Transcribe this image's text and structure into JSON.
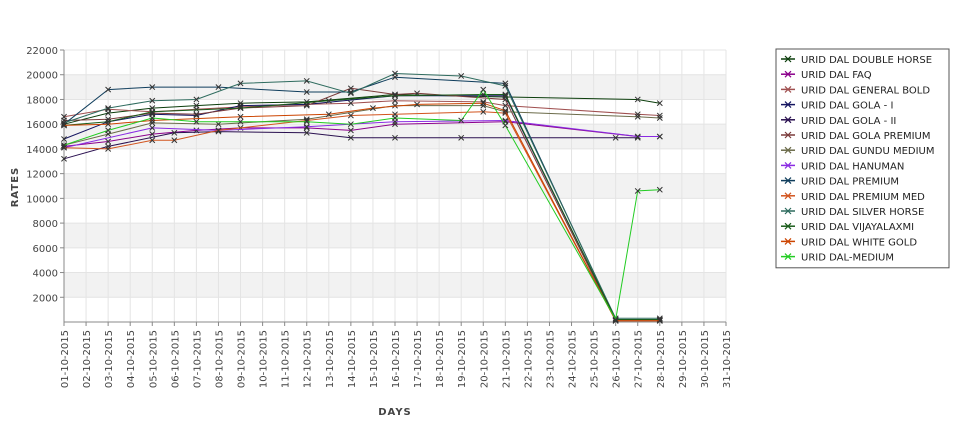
{
  "chart_data": {
    "type": "line",
    "title": "",
    "xlabel": "DAYS",
    "ylabel": "RATES",
    "ylim": [
      0,
      22000
    ],
    "yticks": [
      2000,
      4000,
      6000,
      8000,
      10000,
      12000,
      14000,
      16000,
      18000,
      20000,
      22000
    ],
    "grid": true,
    "alternating_bands": true,
    "legend_position": "right",
    "x_tick_labels": [
      "01-10-2015",
      "02-10-2015",
      "03-10-2015",
      "04-10-2015",
      "05-10-2015",
      "06-10-2015",
      "07-10-2015",
      "08-10-2015",
      "09-10-2015",
      "10-10-2015",
      "11-10-2015",
      "12-10-2015",
      "13-10-2015",
      "14-10-2015",
      "15-10-2015",
      "16-10-2015",
      "17-10-2015",
      "18-10-2015",
      "19-10-2015",
      "20-10-2015",
      "21-10-2015",
      "22-10-2015",
      "23-10-2015",
      "24-10-2015",
      "25-10-2015",
      "26-10-2015",
      "27-10-2015",
      "28-10-2015",
      "29-10-2015",
      "30-10-2015",
      "31-10-2015"
    ],
    "series": [
      {
        "name": "URID DAL DOUBLE HORSE",
        "color": "#0b3d0b",
        "marker": "x",
        "points": [
          [
            "01-10-2015",
            16000
          ],
          [
            "03-10-2015",
            16900
          ],
          [
            "05-10-2015",
            17300
          ],
          [
            "07-10-2015",
            17500
          ],
          [
            "09-10-2015",
            17700
          ],
          [
            "12-10-2015",
            17800
          ],
          [
            "16-10-2015",
            18400
          ],
          [
            "21-10-2015",
            18200
          ],
          [
            "27-10-2015",
            18000
          ],
          [
            "28-10-2015",
            17700
          ]
        ]
      },
      {
        "name": "URID DAL FAQ",
        "color": "#8b008b",
        "marker": "x",
        "points": [
          [
            "01-10-2015",
            14200
          ],
          [
            "03-10-2015",
            14600
          ],
          [
            "05-10-2015",
            15200
          ],
          [
            "07-10-2015",
            15500
          ],
          [
            "09-10-2015",
            15700
          ],
          [
            "12-10-2015",
            15700
          ],
          [
            "14-10-2015",
            15500
          ],
          [
            "16-10-2015",
            16000
          ],
          [
            "21-10-2015",
            16200
          ],
          [
            "27-10-2015",
            15000
          ],
          [
            "28-10-2015",
            15000
          ]
        ]
      },
      {
        "name": "URID DAL GENERAL BOLD",
        "color": "#a05050",
        "marker": "x",
        "points": [
          [
            "01-10-2015",
            16600
          ],
          [
            "03-10-2015",
            17200
          ],
          [
            "05-10-2015",
            17000
          ],
          [
            "07-10-2015",
            17200
          ],
          [
            "09-10-2015",
            17400
          ],
          [
            "12-10-2015",
            17600
          ],
          [
            "14-10-2015",
            17700
          ],
          [
            "16-10-2015",
            17900
          ],
          [
            "20-10-2015",
            17800
          ],
          [
            "21-10-2015",
            17500
          ],
          [
            "27-10-2015",
            16800
          ],
          [
            "28-10-2015",
            16700
          ]
        ]
      },
      {
        "name": "URID DAL GOLA - I",
        "color": "#151560",
        "marker": "x",
        "points": [
          [
            "01-10-2015",
            14800
          ],
          [
            "03-10-2015",
            16200
          ],
          [
            "05-10-2015",
            16800
          ],
          [
            "07-10-2015",
            16700
          ],
          [
            "09-10-2015",
            17500
          ],
          [
            "12-10-2015",
            17600
          ],
          [
            "16-10-2015",
            18300
          ],
          [
            "21-10-2015",
            18300
          ],
          [
            "26-10-2015",
            200
          ],
          [
            "28-10-2015",
            200
          ]
        ]
      },
      {
        "name": "URID DAL GOLA - II",
        "color": "#2a1050",
        "marker": "x",
        "points": [
          [
            "01-10-2015",
            13200
          ],
          [
            "03-10-2015",
            14200
          ],
          [
            "06-10-2015",
            15300
          ],
          [
            "08-10-2015",
            15400
          ],
          [
            "12-10-2015",
            15300
          ],
          [
            "14-10-2015",
            14900
          ],
          [
            "16-10-2015",
            14900
          ],
          [
            "19-10-2015",
            14900
          ],
          [
            "26-10-2015",
            14900
          ],
          [
            "27-10-2015",
            14900
          ]
        ]
      },
      {
        "name": "URID DAL GOLA PREMIUM",
        "color": "#7a3a3a",
        "marker": "x",
        "points": [
          [
            "01-10-2015",
            16300
          ],
          [
            "03-10-2015",
            16400
          ],
          [
            "05-10-2015",
            16900
          ],
          [
            "07-10-2015",
            16800
          ],
          [
            "09-10-2015",
            17300
          ],
          [
            "12-10-2015",
            17500
          ],
          [
            "14-10-2015",
            18900
          ],
          [
            "16-10-2015",
            18400
          ],
          [
            "17-10-2015",
            18500
          ],
          [
            "21-10-2015",
            18000
          ],
          [
            "26-10-2015",
            100
          ],
          [
            "28-10-2015",
            100
          ]
        ]
      },
      {
        "name": "URID DAL GUNDU MEDIUM",
        "color": "#6b6b4a",
        "marker": "x",
        "points": [
          [
            "01-10-2015",
            14300
          ],
          [
            "03-10-2015",
            15200
          ],
          [
            "05-10-2015",
            16100
          ],
          [
            "08-10-2015",
            16000
          ],
          [
            "12-10-2015",
            16400
          ],
          [
            "16-10-2015",
            17500
          ],
          [
            "20-10-2015",
            17500
          ],
          [
            "21-10-2015",
            17000
          ],
          [
            "27-10-2015",
            16600
          ],
          [
            "28-10-2015",
            16500
          ]
        ]
      },
      {
        "name": "URID DAL HANUMAN",
        "color": "#8a2be2",
        "marker": "x",
        "points": [
          [
            "01-10-2015",
            14100
          ],
          [
            "05-10-2015",
            15700
          ],
          [
            "08-10-2015",
            15500
          ],
          [
            "12-10-2015",
            15800
          ],
          [
            "16-10-2015",
            16200
          ],
          [
            "21-10-2015",
            16300
          ],
          [
            "27-10-2015",
            15000
          ],
          [
            "28-10-2015",
            15000
          ]
        ]
      },
      {
        "name": "URID DAL PREMIUM",
        "color": "#0f3d5c",
        "marker": "x",
        "points": [
          [
            "01-10-2015",
            16000
          ],
          [
            "03-10-2015",
            18800
          ],
          [
            "05-10-2015",
            19000
          ],
          [
            "08-10-2015",
            19000
          ],
          [
            "12-10-2015",
            18600
          ],
          [
            "14-10-2015",
            18600
          ],
          [
            "16-10-2015",
            19800
          ],
          [
            "21-10-2015",
            19300
          ],
          [
            "26-10-2015",
            200
          ],
          [
            "28-10-2015",
            200
          ]
        ]
      },
      {
        "name": "URID DAL PREMIUM MED",
        "color": "#d2541e",
        "marker": "x",
        "points": [
          [
            "01-10-2015",
            14100
          ],
          [
            "03-10-2015",
            14000
          ],
          [
            "05-10-2015",
            14700
          ],
          [
            "06-10-2015",
            14700
          ],
          [
            "08-10-2015",
            15500
          ],
          [
            "12-10-2015",
            16300
          ],
          [
            "14-10-2015",
            16700
          ],
          [
            "16-10-2015",
            16800
          ],
          [
            "20-10-2015",
            17000
          ],
          [
            "21-10-2015",
            16900
          ],
          [
            "26-10-2015",
            100
          ],
          [
            "28-10-2015",
            100
          ]
        ]
      },
      {
        "name": "URID DAL SILVER HORSE",
        "color": "#2e6b5e",
        "marker": "x",
        "points": [
          [
            "01-10-2015",
            16100
          ],
          [
            "03-10-2015",
            17300
          ],
          [
            "05-10-2015",
            17900
          ],
          [
            "07-10-2015",
            18000
          ],
          [
            "09-10-2015",
            19300
          ],
          [
            "12-10-2015",
            19500
          ],
          [
            "14-10-2015",
            18500
          ],
          [
            "16-10-2015",
            20100
          ],
          [
            "19-10-2015",
            19900
          ],
          [
            "21-10-2015",
            19100
          ],
          [
            "26-10-2015",
            300
          ],
          [
            "28-10-2015",
            300
          ]
        ]
      },
      {
        "name": "URID DAL VIJAYALAXMI",
        "color": "#1a5c1a",
        "marker": "x",
        "points": [
          [
            "01-10-2015",
            15900
          ],
          [
            "03-10-2015",
            16200
          ],
          [
            "05-10-2015",
            17000
          ],
          [
            "09-10-2015",
            17300
          ],
          [
            "13-10-2015",
            17900
          ],
          [
            "16-10-2015",
            18300
          ],
          [
            "20-10-2015",
            18400
          ],
          [
            "21-10-2015",
            18400
          ],
          [
            "26-10-2015",
            200
          ],
          [
            "28-10-2015",
            200
          ]
        ]
      },
      {
        "name": "URID DAL WHITE GOLD",
        "color": "#cc4400",
        "marker": "x",
        "points": [
          [
            "01-10-2015",
            15900
          ],
          [
            "03-10-2015",
            16000
          ],
          [
            "05-10-2015",
            16300
          ],
          [
            "09-10-2015",
            16600
          ],
          [
            "13-10-2015",
            16800
          ],
          [
            "15-10-2015",
            17300
          ],
          [
            "17-10-2015",
            17600
          ],
          [
            "20-10-2015",
            17700
          ],
          [
            "21-10-2015",
            17100
          ],
          [
            "26-10-2015",
            100
          ],
          [
            "28-10-2015",
            100
          ]
        ]
      },
      {
        "name": "URID DAL-MEDIUM",
        "color": "#22cc22",
        "marker": "x",
        "points": [
          [
            "01-10-2015",
            14300
          ],
          [
            "03-10-2015",
            15500
          ],
          [
            "05-10-2015",
            16500
          ],
          [
            "07-10-2015",
            16200
          ],
          [
            "09-10-2015",
            16200
          ],
          [
            "12-10-2015",
            16200
          ],
          [
            "14-10-2015",
            16000
          ],
          [
            "16-10-2015",
            16500
          ],
          [
            "19-10-2015",
            16300
          ],
          [
            "20-10-2015",
            18800
          ],
          [
            "21-10-2015",
            15900
          ],
          [
            "26-10-2015",
            200
          ],
          [
            "27-10-2015",
            10600
          ],
          [
            "28-10-2015",
            10700
          ]
        ]
      }
    ]
  }
}
